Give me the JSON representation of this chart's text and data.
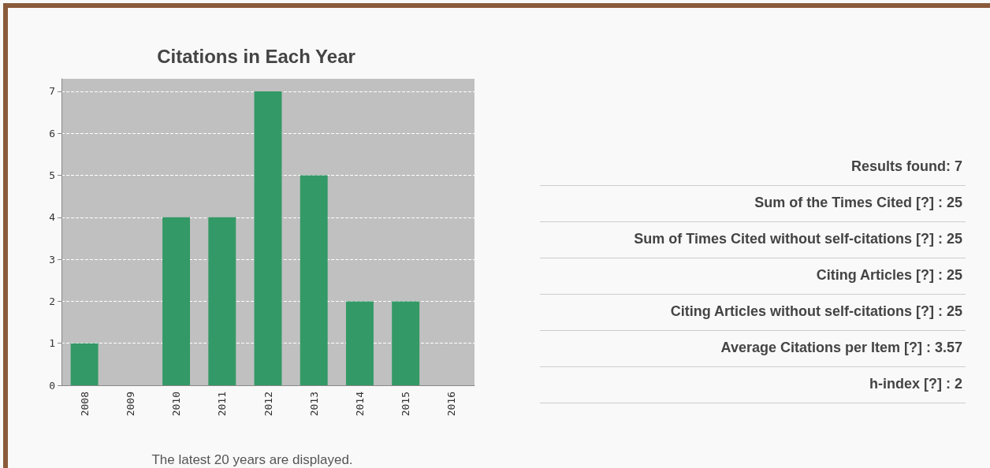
{
  "chart_data": [
    {
      "type": "bar",
      "title": "Citations in Each Year",
      "categories": [
        "2008",
        "2009",
        "2010",
        "2011",
        "2012",
        "2013",
        "2014",
        "2015",
        "2016"
      ],
      "values": [
        1,
        0,
        4,
        4,
        7,
        5,
        2,
        2,
        0
      ],
      "color": "#339966",
      "ylim": [
        0,
        7.3
      ],
      "yticks": [
        0,
        1,
        2,
        3,
        4,
        5,
        6,
        7
      ],
      "grid": "y",
      "annotations": [
        "The latest 20 years are displayed."
      ]
    },
    {
      "type": "other",
      "annotations": [
        "Results found:  7",
        "Sum of the Times Cited [?] :  25",
        "Sum of Times Cited without self-citations [?] :  25",
        "Citing Articles [?] :  25",
        "Citing Articles without self-citations [?] :  25",
        "Average Citations per Item [?] :  3.57",
        "h-index [?] :  2"
      ]
    }
  ]
}
